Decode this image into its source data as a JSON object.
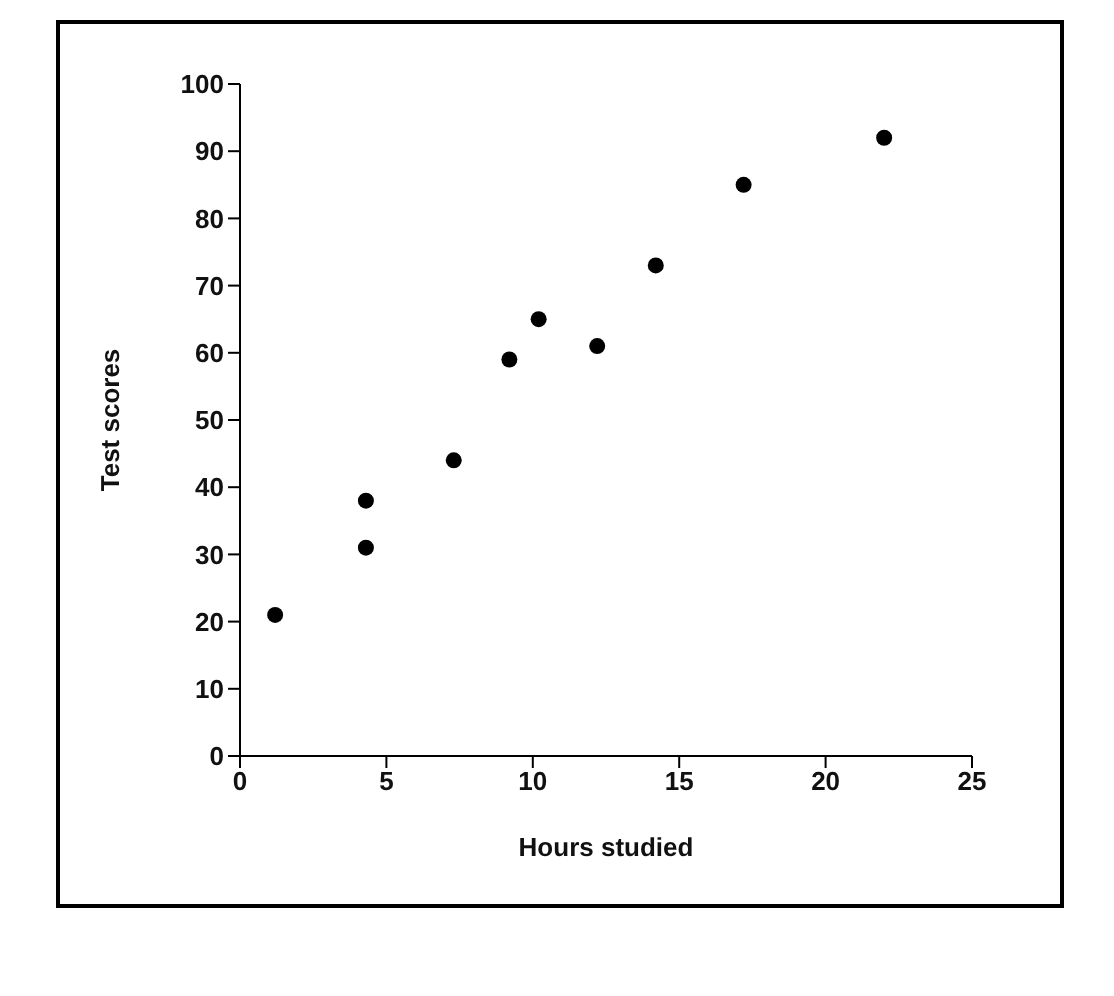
{
  "chart_data": {
    "type": "scatter",
    "xlabel": "Hours studied",
    "ylabel": "Test scores",
    "x": [
      1.2,
      4.3,
      4.3,
      7.3,
      9.2,
      10.2,
      12.2,
      14.2,
      17.2,
      22
    ],
    "values": [
      21,
      38,
      31,
      44,
      59,
      65,
      61,
      73,
      85,
      92
    ],
    "color": "#000000",
    "marker": "circle",
    "grid": false,
    "legend": false,
    "xlim": [
      0,
      25
    ],
    "xticks": [
      0,
      5,
      10,
      15,
      20,
      25
    ],
    "ylim": [
      0,
      100
    ],
    "yticks": [
      0,
      10,
      20,
      30,
      40,
      50,
      60,
      70,
      80,
      90,
      100
    ]
  }
}
